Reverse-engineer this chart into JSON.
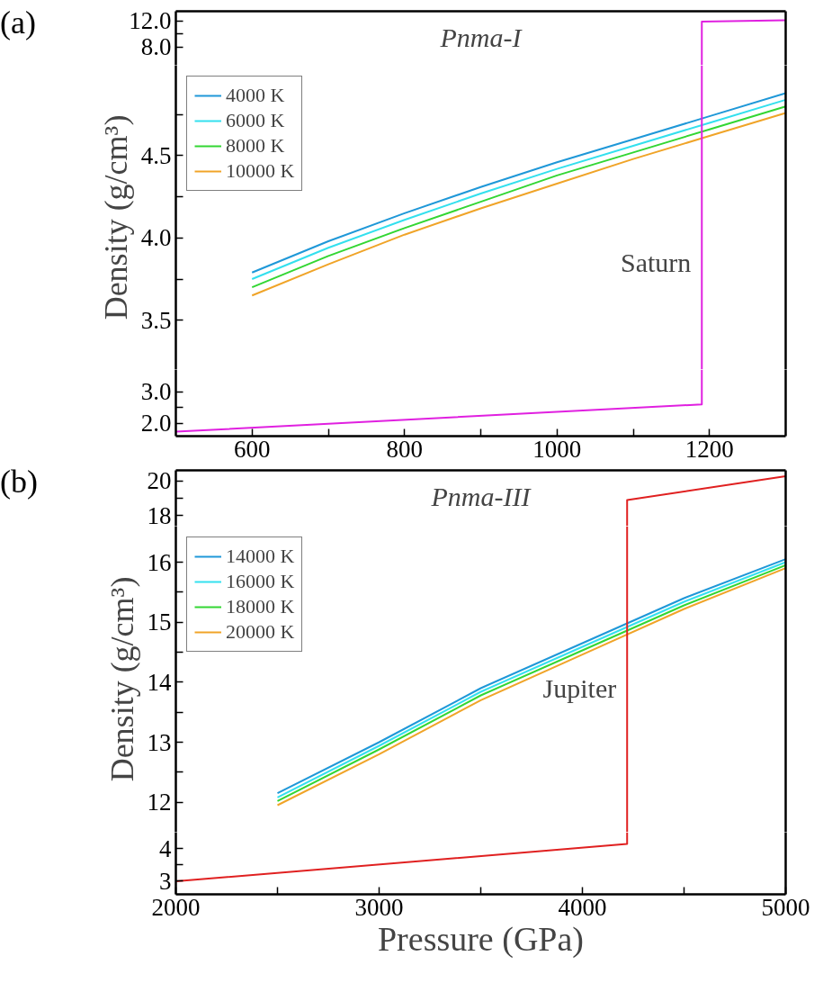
{
  "chart_data": [
    {
      "type": "line",
      "title": "Pnma-I",
      "annotations": [
        "(a)"
      ],
      "xlim": [
        500,
        1300
      ],
      "ylim": [
        5.2,
        13.5
      ],
      "yticks": [
        {
          "value": 8,
          "label": "8.0"
        },
        {
          "value": 10,
          "label": null
        },
        {
          "value": 12,
          "label": "12.0"
        }
      ],
      "tick_labels": "y",
      "grid": false,
      "legend": false,
      "series": [
        {
          "color": "#e020e0",
          "x": [
            1190,
            1190,
            1300
          ],
          "values": [
            5.2,
            11.9,
            12.1
          ]
        }
      ]
    },
    {
      "type": "line",
      "ylabel": "Density (g/cm³)",
      "annotations": [
        {
          "text": "Saturn",
          "x": 1190,
          "y": 3.85
        }
      ],
      "xlim": [
        500,
        1300
      ],
      "ylim": [
        3.2,
        5.05
      ],
      "yticks": [
        {
          "value": 3.5,
          "label": "3.5"
        },
        {
          "value": 3.75,
          "label": null
        },
        {
          "value": 4,
          "label": "4.0"
        },
        {
          "value": 4.25,
          "label": null
        },
        {
          "value": 4.5,
          "label": "4.5"
        },
        {
          "value": 4.75,
          "label": null
        }
      ],
      "tick_labels": "y",
      "grid": false,
      "legend": "top left",
      "x": [
        600,
        700,
        800,
        900,
        1000,
        1100,
        1200,
        1300
      ],
      "series": [
        {
          "name": "4000 K",
          "color": "#1f98d8",
          "values": [
            3.79,
            3.98,
            4.15,
            4.31,
            4.46,
            4.6,
            4.74,
            4.88
          ]
        },
        {
          "name": "6000 K",
          "color": "#33e0ee",
          "values": [
            3.75,
            3.94,
            4.11,
            4.27,
            4.42,
            4.56,
            4.7,
            4.84
          ]
        },
        {
          "name": "8000 K",
          "color": "#33d633",
          "values": [
            3.7,
            3.89,
            4.06,
            4.22,
            4.38,
            4.52,
            4.66,
            4.8
          ]
        },
        {
          "name": "10000 K",
          "color": "#f0a428",
          "values": [
            3.65,
            3.84,
            4.02,
            4.18,
            4.33,
            4.48,
            4.62,
            4.76
          ]
        },
        {
          "color": "#e020e0",
          "x": [
            1190,
            1190
          ],
          "values": [
            3.2,
            5.05
          ]
        }
      ]
    },
    {
      "type": "line",
      "xlim": [
        500,
        1300
      ],
      "ylim": [
        1.6,
        3.7
      ],
      "xticks": [
        600,
        {
          "value": 700,
          "label": null
        },
        800,
        {
          "value": 900,
          "label": null
        },
        1000,
        {
          "value": 1100,
          "label": null
        },
        1200
      ],
      "yticks": [
        {
          "value": 2,
          "label": "2.0"
        },
        {
          "value": 2.5,
          "label": null
        },
        {
          "value": 3,
          "label": "3.0"
        }
      ],
      "grid": false,
      "legend": false,
      "series": [
        {
          "color": "#e020e0",
          "x": [
            500,
            1190,
            1190
          ],
          "values": [
            1.74,
            2.6,
            3.7
          ]
        }
      ]
    },
    {
      "type": "line",
      "title": "Pnma-III",
      "annotations": [
        "(b)"
      ],
      "xlim": [
        2000,
        5000
      ],
      "ylim": [
        17.4,
        20.6
      ],
      "yticks": [
        18,
        {
          "value": 19,
          "label": null
        },
        20
      ],
      "tick_labels": "y",
      "grid": false,
      "legend": false,
      "series": [
        {
          "color": "#e02020",
          "x": [
            4220,
            4220,
            5000
          ],
          "values": [
            17.4,
            18.9,
            20.26
          ]
        }
      ]
    },
    {
      "type": "line",
      "ylabel": "Density (g/cm³)",
      "annotations": [
        {
          "text": "Jupiter",
          "x": 4220,
          "y": 13.9
        }
      ],
      "xlim": [
        2000,
        5000
      ],
      "ylim": [
        11.5,
        16.6
      ],
      "yticks": [
        12,
        {
          "value": 12.5,
          "label": null
        },
        13,
        {
          "value": 13.5,
          "label": null
        },
        14,
        {
          "value": 14.5,
          "label": null
        },
        15,
        {
          "value": 15.5,
          "label": null
        },
        16
      ],
      "tick_labels": "y",
      "grid": false,
      "legend": "top left",
      "x": [
        2500,
        3000,
        3500,
        4000,
        4500,
        5000
      ],
      "series": [
        {
          "name": "14000 K",
          "color": "#1f98d8",
          "values": [
            12.15,
            13.0,
            13.9,
            14.65,
            15.4,
            16.05
          ]
        },
        {
          "name": "16000 K",
          "color": "#33e0ee",
          "values": [
            12.08,
            12.94,
            13.84,
            14.59,
            15.34,
            16.0
          ]
        },
        {
          "name": "18000 K",
          "color": "#33d633",
          "values": [
            12.02,
            12.88,
            13.78,
            14.53,
            15.28,
            15.95
          ]
        },
        {
          "name": "20000 K",
          "color": "#f0a428",
          "values": [
            11.95,
            12.8,
            13.7,
            14.46,
            15.22,
            15.9
          ]
        },
        {
          "color": "#e02020",
          "x": [
            4220,
            4220
          ],
          "values": [
            11.5,
            16.6
          ]
        }
      ]
    },
    {
      "type": "line",
      "xlabel": "Pressure (GPa)",
      "xlim": [
        2000,
        5000
      ],
      "ylim": [
        2.6,
        4.5
      ],
      "xticks": [
        2000,
        {
          "value": 2500,
          "label": null
        },
        3000,
        {
          "value": 3500,
          "label": null
        },
        4000,
        {
          "value": 4500,
          "label": null
        },
        5000
      ],
      "yticks": [
        3,
        {
          "value": 3.5,
          "label": null
        },
        4
      ],
      "grid": false,
      "legend": false,
      "series": [
        {
          "color": "#e02020",
          "x": [
            2000,
            4220,
            4220
          ],
          "values": [
            3.0,
            4.14,
            4.5
          ]
        }
      ]
    }
  ]
}
